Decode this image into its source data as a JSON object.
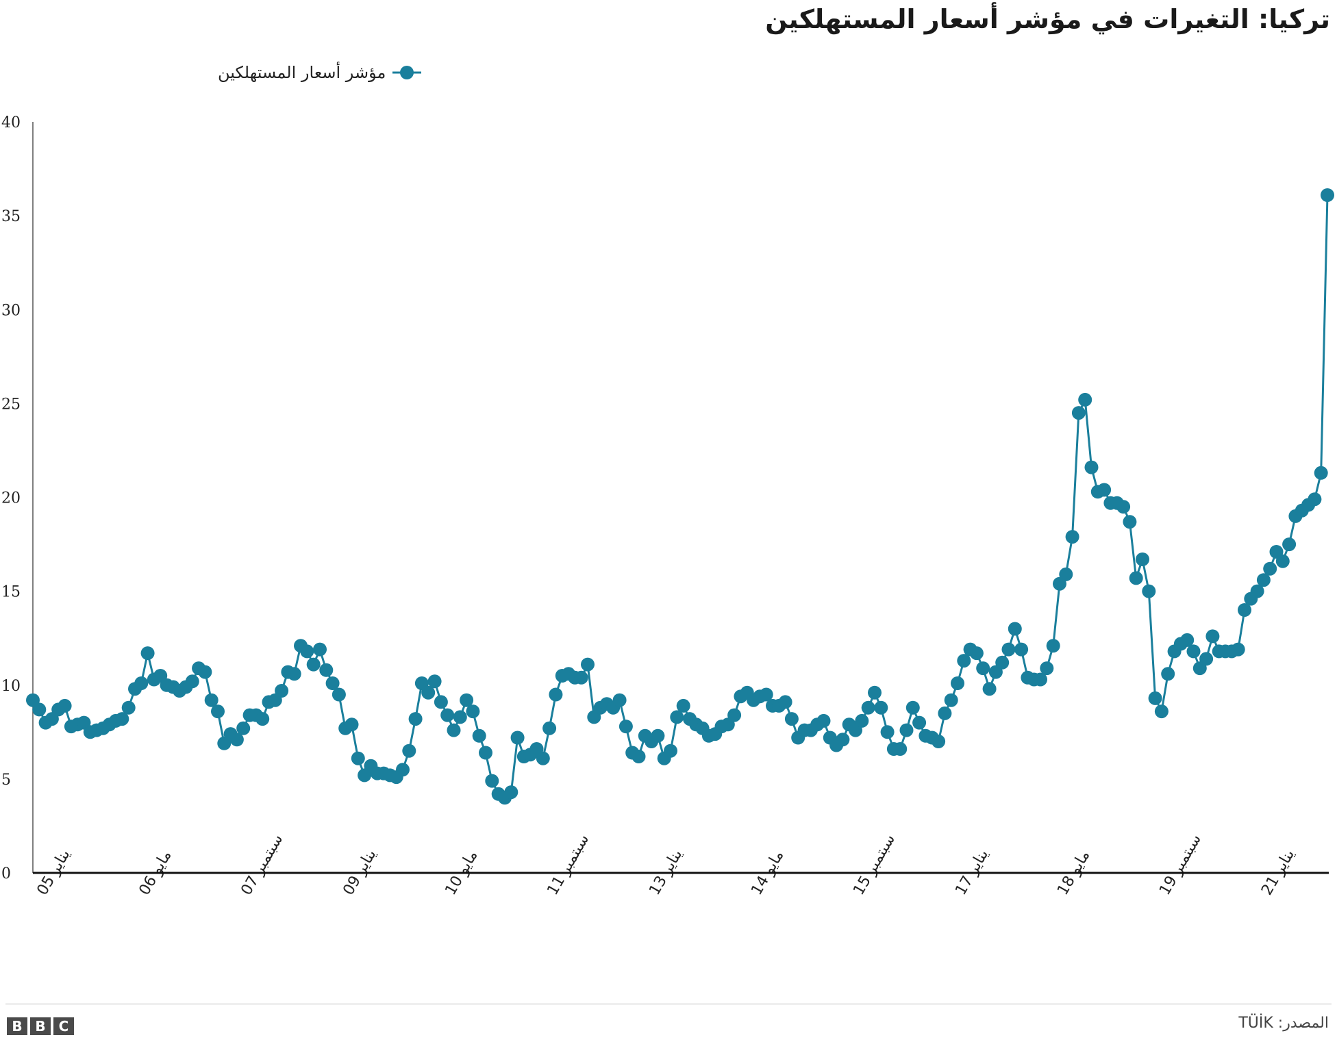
{
  "title": "تركيا: التغيرات في مؤشر أسعار المستهلكين",
  "legend": {
    "label": "مؤشر أسعار المستهلكين"
  },
  "footer": {
    "logo": "BBC",
    "logo_letters": [
      "B",
      "B",
      "C"
    ],
    "source": "المصدر: TÜİK"
  },
  "colors": {
    "series": "#1a7f9c",
    "axis": "#111111",
    "text": "#222222"
  },
  "chart_data": {
    "type": "line",
    "x_type": "monthly time series, Jan 2005 – Mar 2022",
    "xlabel": "",
    "ylabel": "",
    "ylim": [
      0,
      40
    ],
    "yticks": [
      0,
      5,
      10,
      15,
      20,
      25,
      30,
      35,
      40
    ],
    "x_tick_labels": [
      "يناير 05",
      "مايو 06",
      "سبتمبر 07",
      "يناير 09",
      "مايو 10",
      "سبتمبر 11",
      "يناير 13",
      "مايو 14",
      "سبتمبر 15",
      "يناير 17",
      "مايو 18",
      "سبتمبر 19",
      "يناير 21"
    ],
    "grid": false,
    "legend_position": "top-left",
    "markers": true,
    "series": [
      {
        "name": "مؤشر أسعار المستهلكين",
        "values": [
          9.2,
          8.7,
          8.0,
          8.2,
          8.7,
          8.9,
          7.8,
          7.9,
          8.0,
          7.5,
          7.6,
          7.7,
          7.9,
          8.1,
          8.2,
          8.8,
          9.8,
          10.1,
          11.7,
          10.3,
          10.5,
          10.0,
          9.9,
          9.7,
          9.9,
          10.2,
          10.9,
          10.7,
          9.2,
          8.6,
          6.9,
          7.4,
          7.1,
          7.7,
          8.4,
          8.4,
          8.2,
          9.1,
          9.2,
          9.7,
          10.7,
          10.6,
          12.1,
          11.8,
          11.1,
          11.9,
          10.8,
          10.1,
          9.5,
          7.7,
          7.9,
          6.1,
          5.2,
          5.7,
          5.3,
          5.3,
          5.2,
          5.1,
          5.5,
          6.5,
          8.2,
          10.1,
          9.6,
          10.2,
          9.1,
          8.4,
          7.6,
          8.3,
          9.2,
          8.6,
          7.3,
          6.4,
          4.9,
          4.2,
          4.0,
          4.3,
          7.2,
          6.2,
          6.3,
          6.6,
          6.1,
          7.7,
          9.5,
          10.5,
          10.6,
          10.4,
          10.4,
          11.1,
          8.3,
          8.8,
          9.0,
          8.8,
          9.2,
          7.8,
          6.4,
          6.2,
          7.3,
          7.0,
          7.3,
          6.1,
          6.5,
          8.3,
          8.9,
          8.2,
          7.9,
          7.7,
          7.3,
          7.4,
          7.8,
          7.9,
          8.4,
          9.4,
          9.6,
          9.2,
          9.4,
          9.5,
          8.9,
          8.9,
          9.1,
          8.2,
          7.2,
          7.6,
          7.6,
          7.9,
          8.1,
          7.2,
          6.8,
          7.1,
          7.9,
          7.6,
          8.1,
          8.8,
          9.6,
          8.8,
          7.5,
          6.6,
          6.6,
          7.6,
          8.8,
          8.0,
          7.3,
          7.2,
          7.0,
          8.5,
          9.2,
          10.1,
          11.3,
          11.9,
          11.7,
          10.9,
          9.8,
          10.7,
          11.2,
          11.9,
          13.0,
          11.9,
          10.4,
          10.3,
          10.3,
          10.9,
          12.1,
          15.4,
          15.9,
          17.9,
          24.5,
          25.2,
          21.6,
          20.3,
          20.4,
          19.7,
          19.7,
          19.5,
          18.7,
          15.7,
          16.7,
          15.0,
          9.3,
          8.6,
          10.6,
          11.8,
          12.2,
          12.4,
          11.8,
          10.9,
          11.4,
          12.6,
          11.8,
          11.8,
          11.8,
          11.9,
          14.0,
          14.6,
          15.0,
          15.6,
          16.2,
          17.1,
          16.6,
          17.5,
          19.0,
          19.3,
          19.6,
          19.9,
          21.3,
          36.1
        ]
      }
    ]
  }
}
